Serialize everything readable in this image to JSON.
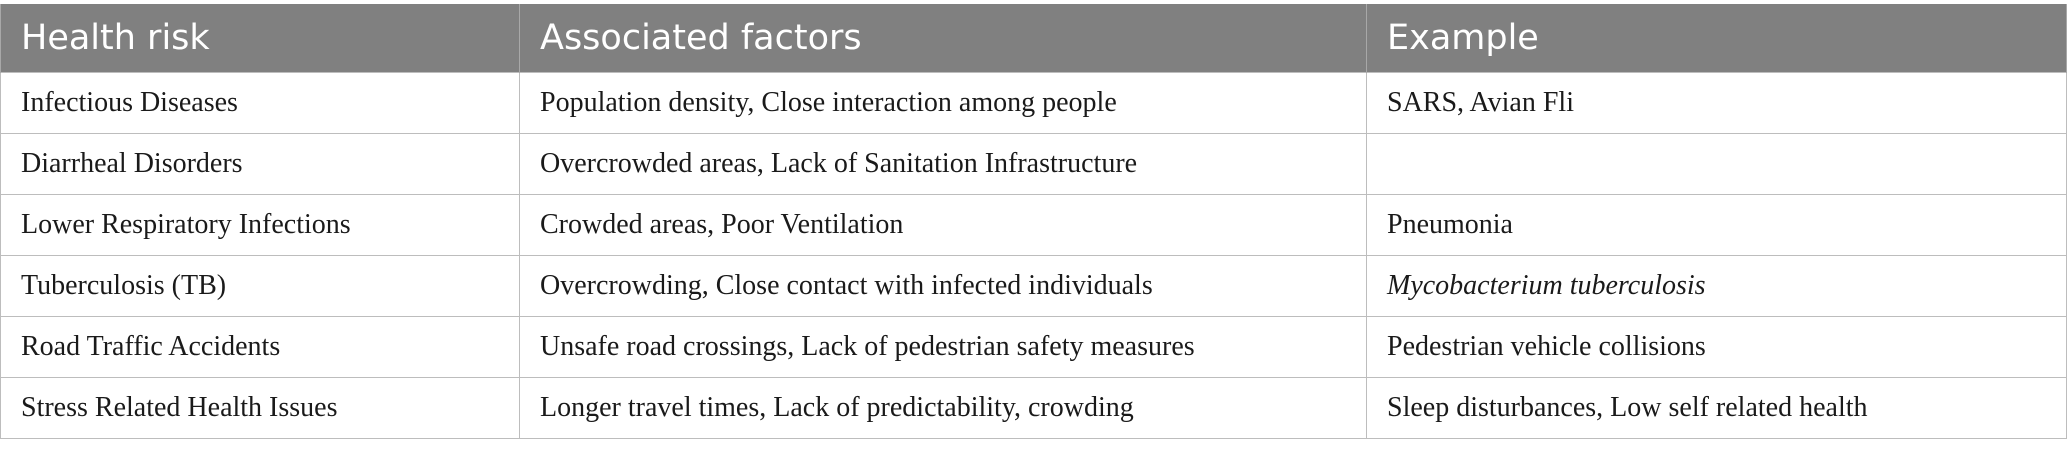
{
  "table": {
    "headers": [
      "Health risk",
      "Associated factors",
      "Example"
    ],
    "rows": [
      {
        "risk": "Infectious Diseases",
        "factors": "Population density, Close interaction among people",
        "example": "SARS, Avian Fli"
      },
      {
        "risk": "Diarrheal Disorders",
        "factors": "Overcrowded areas, Lack of Sanitation Infrastructure",
        "example": ""
      },
      {
        "risk": "Lower Respiratory Infections",
        "factors": "Crowded areas, Poor Ventilation",
        "example": "Pneumonia"
      },
      {
        "risk": "Tuberculosis (TB)",
        "factors": "Overcrowding, Close contact with infected individuals",
        "example": "Mycobacterium tuberculosis"
      },
      {
        "risk": "Road Traffic Accidents",
        "factors": "Unsafe road crossings, Lack of pedestrian safety measures",
        "example": "Pedestrian vehicle collisions"
      },
      {
        "risk": "Stress Related Health Issues",
        "factors": "Longer travel times, Lack of predictability, crowding",
        "example": "Sleep disturbances, Low self related health"
      }
    ]
  }
}
